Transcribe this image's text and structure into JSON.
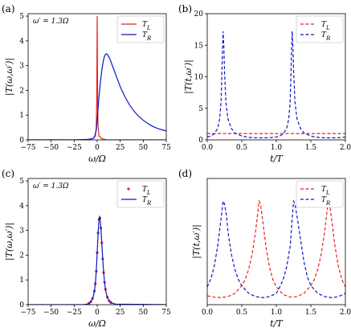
{
  "chart_data": [
    {
      "panel_label": "(a)",
      "type": "line",
      "xlabel": "ω/Ω",
      "ylabel": "|T(ω,ω′)|",
      "xlim": [
        -75,
        75
      ],
      "ylim": [
        0,
        5.1
      ],
      "xticks": [
        -75,
        -50,
        -25,
        0,
        25,
        50,
        75
      ],
      "yticks": [
        0,
        1,
        2,
        3,
        4,
        5
      ],
      "annotation": "ω′ = 1.3Ω",
      "legend_position": "top-right",
      "series": [
        {
          "name": "T_L",
          "color": "#e8211c",
          "dash": "solid",
          "points": [
            [
              -75,
              0
            ],
            [
              -10,
              0
            ],
            [
              -5,
              0.05
            ],
            [
              -2,
              0.15
            ],
            [
              -1,
              0.5
            ],
            [
              -0.5,
              1.5
            ],
            [
              0,
              5.0
            ],
            [
              0.5,
              1.5
            ],
            [
              1,
              0.5
            ],
            [
              2,
              0.15
            ],
            [
              5,
              0.05
            ],
            [
              10,
              0
            ],
            [
              75,
              0
            ]
          ]
        },
        {
          "name": "T_R",
          "color": "#0b18c4",
          "dash": "solid",
          "points": [
            [
              -75,
              0
            ],
            [
              -25,
              0
            ],
            [
              -10,
              0.02
            ],
            [
              -5,
              0.05
            ],
            [
              -3,
              0.1
            ],
            [
              -1,
              0.4
            ],
            [
              0,
              0.8
            ],
            [
              1,
              1.3
            ],
            [
              2,
              1.75
            ],
            [
              3,
              2.15
            ],
            [
              4,
              2.5
            ],
            [
              5,
              2.8
            ],
            [
              6,
              3.05
            ],
            [
              7,
              3.25
            ],
            [
              8,
              3.38
            ],
            [
              9,
              3.45
            ],
            [
              10,
              3.48
            ],
            [
              11,
              3.45
            ],
            [
              12,
              3.4
            ],
            [
              14,
              3.25
            ],
            [
              16,
              3.05
            ],
            [
              18,
              2.85
            ],
            [
              20,
              2.65
            ],
            [
              25,
              2.15
            ],
            [
              30,
              1.75
            ],
            [
              35,
              1.42
            ],
            [
              40,
              1.16
            ],
            [
              45,
              0.95
            ],
            [
              50,
              0.79
            ],
            [
              55,
              0.66
            ],
            [
              60,
              0.55
            ],
            [
              65,
              0.47
            ],
            [
              70,
              0.41
            ],
            [
              75,
              0.36
            ]
          ]
        }
      ]
    },
    {
      "panel_label": "(b)",
      "type": "line",
      "xlabel": "t/T",
      "ylabel": "|T(t,ω′)|",
      "xlim": [
        0,
        2.0
      ],
      "ylim": [
        0,
        20
      ],
      "xticks": [
        0.0,
        0.5,
        1.0,
        1.5,
        2.0
      ],
      "yticks": [
        0,
        5,
        10,
        15,
        20
      ],
      "legend_position": "top-right",
      "series": [
        {
          "name": "T_L",
          "color": "#e8211c",
          "dash": "dashed",
          "points": [
            [
              0,
              1.0
            ],
            [
              2.0,
              1.0
            ]
          ]
        },
        {
          "name": "T_R",
          "color": "#0b18c4",
          "dash": "dashed",
          "points": [
            [
              0,
              0.45
            ],
            [
              0.05,
              0.6
            ],
            [
              0.1,
              0.95
            ],
            [
              0.15,
              1.8
            ],
            [
              0.18,
              3.3
            ],
            [
              0.2,
              6.0
            ],
            [
              0.21,
              9.5
            ],
            [
              0.22,
              14.0
            ],
            [
              0.23,
              17.2
            ],
            [
              0.24,
              15.0
            ],
            [
              0.25,
              11.0
            ],
            [
              0.27,
              6.0
            ],
            [
              0.3,
              3.3
            ],
            [
              0.35,
              1.8
            ],
            [
              0.4,
              1.1
            ],
            [
              0.5,
              0.6
            ],
            [
              0.6,
              0.4
            ],
            [
              0.7,
              0.33
            ],
            [
              0.8,
              0.32
            ],
            [
              0.9,
              0.34
            ],
            [
              1.0,
              0.45
            ],
            [
              1.05,
              0.6
            ],
            [
              1.1,
              0.95
            ],
            [
              1.15,
              1.8
            ],
            [
              1.18,
              3.3
            ],
            [
              1.2,
              6.0
            ],
            [
              1.21,
              9.5
            ],
            [
              1.22,
              14.0
            ],
            [
              1.23,
              17.2
            ],
            [
              1.24,
              15.0
            ],
            [
              1.25,
              11.0
            ],
            [
              1.27,
              6.0
            ],
            [
              1.3,
              3.3
            ],
            [
              1.35,
              1.8
            ],
            [
              1.4,
              1.1
            ],
            [
              1.5,
              0.6
            ],
            [
              1.6,
              0.4
            ],
            [
              1.7,
              0.33
            ],
            [
              1.8,
              0.32
            ],
            [
              1.9,
              0.34
            ],
            [
              2.0,
              0.45
            ]
          ]
        }
      ]
    },
    {
      "panel_label": "(c)",
      "type": "line",
      "xlabel": "ω/Ω",
      "ylabel": "|T(ω,ω′)|",
      "xlim": [
        -75,
        75
      ],
      "ylim": [
        0,
        5.1
      ],
      "xticks": [
        -75,
        -50,
        -25,
        0,
        25,
        50,
        75
      ],
      "yticks": [
        0,
        1,
        2,
        3,
        4,
        5
      ],
      "annotation": "ω′ = 1.3Ω",
      "legend_position": "top-right",
      "series": [
        {
          "name": "T_L",
          "color": "#e8211c",
          "dash": "markers",
          "points": [
            [
              -9,
              0.05
            ],
            [
              -7,
              0.12
            ],
            [
              -5,
              0.25
            ],
            [
              -3,
              0.55
            ],
            [
              -2,
              0.85
            ],
            [
              -1,
              1.35
            ],
            [
              0,
              2.1
            ],
            [
              1,
              2.9
            ],
            [
              2,
              3.45
            ],
            [
              3,
              3.5
            ],
            [
              4,
              3.1
            ],
            [
              5,
              2.5
            ],
            [
              6,
              1.85
            ],
            [
              7,
              1.3
            ],
            [
              8,
              0.9
            ],
            [
              9,
              0.62
            ],
            [
              11,
              0.3
            ],
            [
              13,
              0.15
            ],
            [
              15,
              0.08
            ]
          ]
        },
        {
          "name": "T_R",
          "color": "#0b18c4",
          "dash": "solid",
          "points": [
            [
              -75,
              0
            ],
            [
              -15,
              0
            ],
            [
              -10,
              0.03
            ],
            [
              -8,
              0.08
            ],
            [
              -6,
              0.17
            ],
            [
              -5,
              0.25
            ],
            [
              -4,
              0.38
            ],
            [
              -3,
              0.55
            ],
            [
              -2,
              0.85
            ],
            [
              -1,
              1.35
            ],
            [
              0,
              2.1
            ],
            [
              1,
              2.9
            ],
            [
              2,
              3.45
            ],
            [
              2.5,
              3.55
            ],
            [
              3,
              3.5
            ],
            [
              4,
              3.1
            ],
            [
              5,
              2.5
            ],
            [
              6,
              1.85
            ],
            [
              7,
              1.3
            ],
            [
              8,
              0.9
            ],
            [
              9,
              0.62
            ],
            [
              10,
              0.43
            ],
            [
              12,
              0.22
            ],
            [
              15,
              0.08
            ],
            [
              20,
              0.02
            ],
            [
              75,
              0
            ]
          ]
        }
      ]
    },
    {
      "panel_label": "(d)",
      "type": "line",
      "xlabel": "t/T",
      "ylabel": "|T(t,ω′)|",
      "xlim": [
        0,
        2.0
      ],
      "ylim": [
        0,
        5
      ],
      "xticks": [
        0.0,
        0.5,
        1.0,
        1.5,
        2.0
      ],
      "yticks": [],
      "legend_position": "top-right",
      "series": [
        {
          "name": "T_L",
          "color": "#e8211c",
          "dash": "dashed",
          "points": [
            [
              0,
              0.35
            ],
            [
              0.1,
              0.3
            ],
            [
              0.2,
              0.28
            ],
            [
              0.3,
              0.32
            ],
            [
              0.4,
              0.45
            ],
            [
              0.5,
              0.75
            ],
            [
              0.55,
              1.0
            ],
            [
              0.6,
              1.4
            ],
            [
              0.65,
              2.0
            ],
            [
              0.7,
              2.9
            ],
            [
              0.73,
              3.6
            ],
            [
              0.75,
              4.1
            ],
            [
              0.77,
              4.0
            ],
            [
              0.8,
              3.4
            ],
            [
              0.85,
              2.3
            ],
            [
              0.9,
              1.5
            ],
            [
              0.95,
              1.0
            ],
            [
              1.0,
              0.7
            ],
            [
              1.1,
              0.4
            ],
            [
              1.2,
              0.3
            ],
            [
              1.3,
              0.32
            ],
            [
              1.4,
              0.45
            ],
            [
              1.5,
              0.75
            ],
            [
              1.55,
              1.0
            ],
            [
              1.6,
              1.4
            ],
            [
              1.65,
              2.0
            ],
            [
              1.7,
              2.9
            ],
            [
              1.73,
              3.6
            ],
            [
              1.75,
              4.1
            ],
            [
              1.77,
              4.0
            ],
            [
              1.8,
              3.4
            ],
            [
              1.85,
              2.3
            ],
            [
              1.9,
              1.5
            ],
            [
              1.95,
              1.0
            ],
            [
              2.0,
              0.7
            ]
          ]
        },
        {
          "name": "T_R",
          "color": "#0b18c4",
          "dash": "dashed",
          "points": [
            [
              0,
              0.7
            ],
            [
              0.05,
              1.0
            ],
            [
              0.1,
              1.5
            ],
            [
              0.15,
              2.3
            ],
            [
              0.2,
              3.4
            ],
            [
              0.23,
              4.1
            ],
            [
              0.25,
              4.0
            ],
            [
              0.28,
              3.5
            ],
            [
              0.3,
              2.9
            ],
            [
              0.35,
              2.0
            ],
            [
              0.4,
              1.4
            ],
            [
              0.45,
              1.0
            ],
            [
              0.5,
              0.75
            ],
            [
              0.6,
              0.45
            ],
            [
              0.7,
              0.32
            ],
            [
              0.8,
              0.28
            ],
            [
              0.9,
              0.32
            ],
            [
              1.0,
              0.45
            ],
            [
              1.05,
              0.7
            ],
            [
              1.1,
              1.0
            ],
            [
              1.15,
              1.5
            ],
            [
              1.2,
              2.3
            ],
            [
              1.23,
              3.4
            ],
            [
              1.25,
              4.1
            ],
            [
              1.27,
              4.0
            ],
            [
              1.3,
              3.5
            ],
            [
              1.35,
              2.6
            ],
            [
              1.4,
              1.7
            ],
            [
              1.45,
              1.1
            ],
            [
              1.5,
              0.75
            ],
            [
              1.6,
              0.45
            ],
            [
              1.7,
              0.32
            ],
            [
              1.8,
              0.28
            ],
            [
              1.9,
              0.32
            ],
            [
              2.0,
              0.45
            ]
          ]
        }
      ]
    }
  ]
}
